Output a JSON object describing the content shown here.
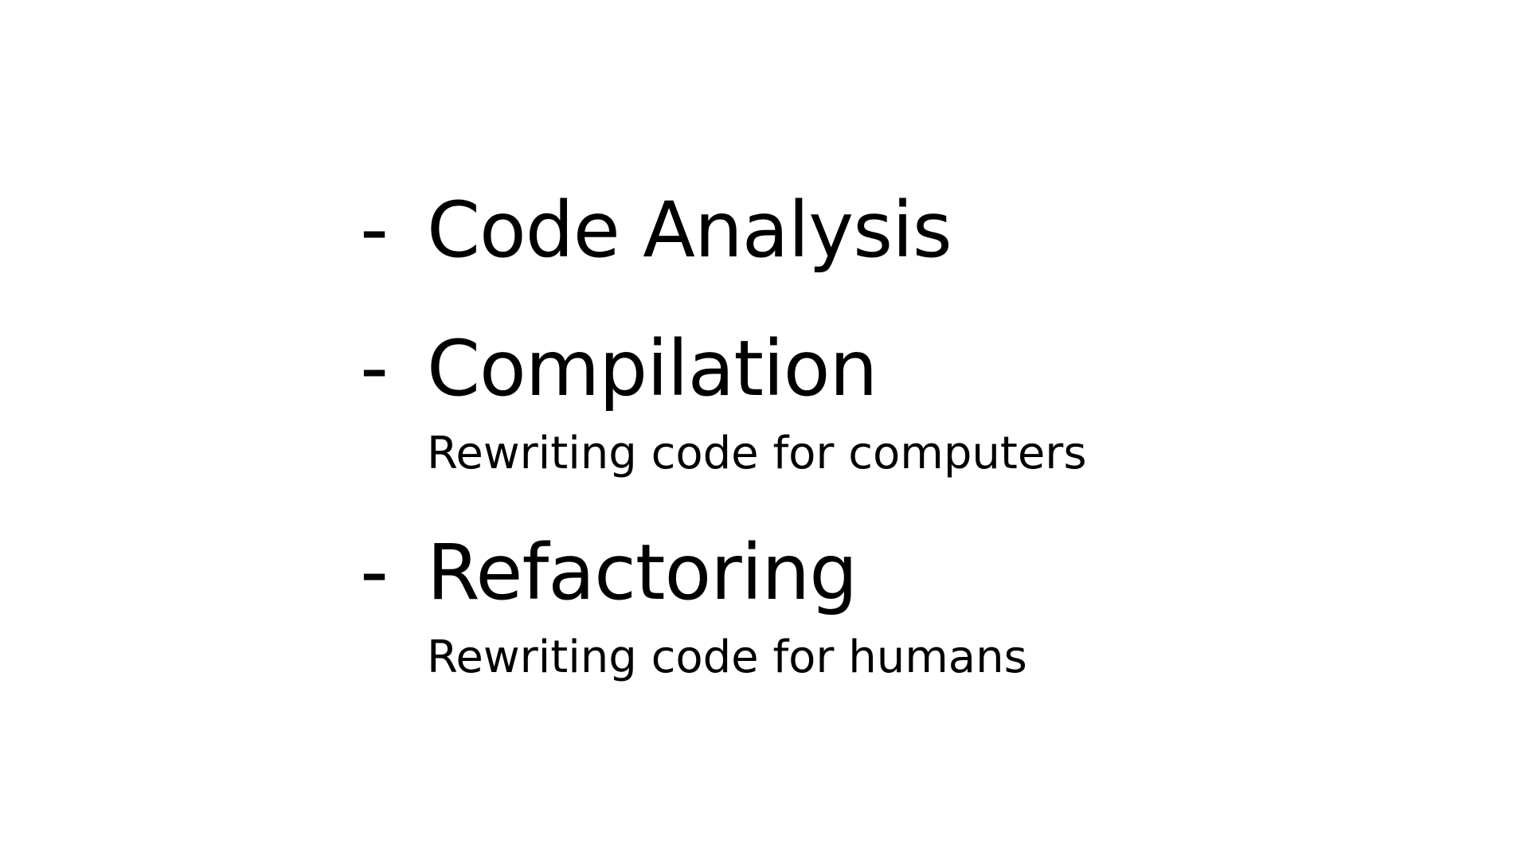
{
  "slide": {
    "items": [
      {
        "bullet": "-",
        "title": "Code Analysis",
        "subtitle": ""
      },
      {
        "bullet": "-",
        "title": "Compilation",
        "subtitle": "Rewriting code for computers"
      },
      {
        "bullet": "-",
        "title": "Refactoring",
        "subtitle": "Rewriting code for humans"
      }
    ],
    "colors": {
      "background": "#ffffff",
      "text": "#000000"
    }
  }
}
